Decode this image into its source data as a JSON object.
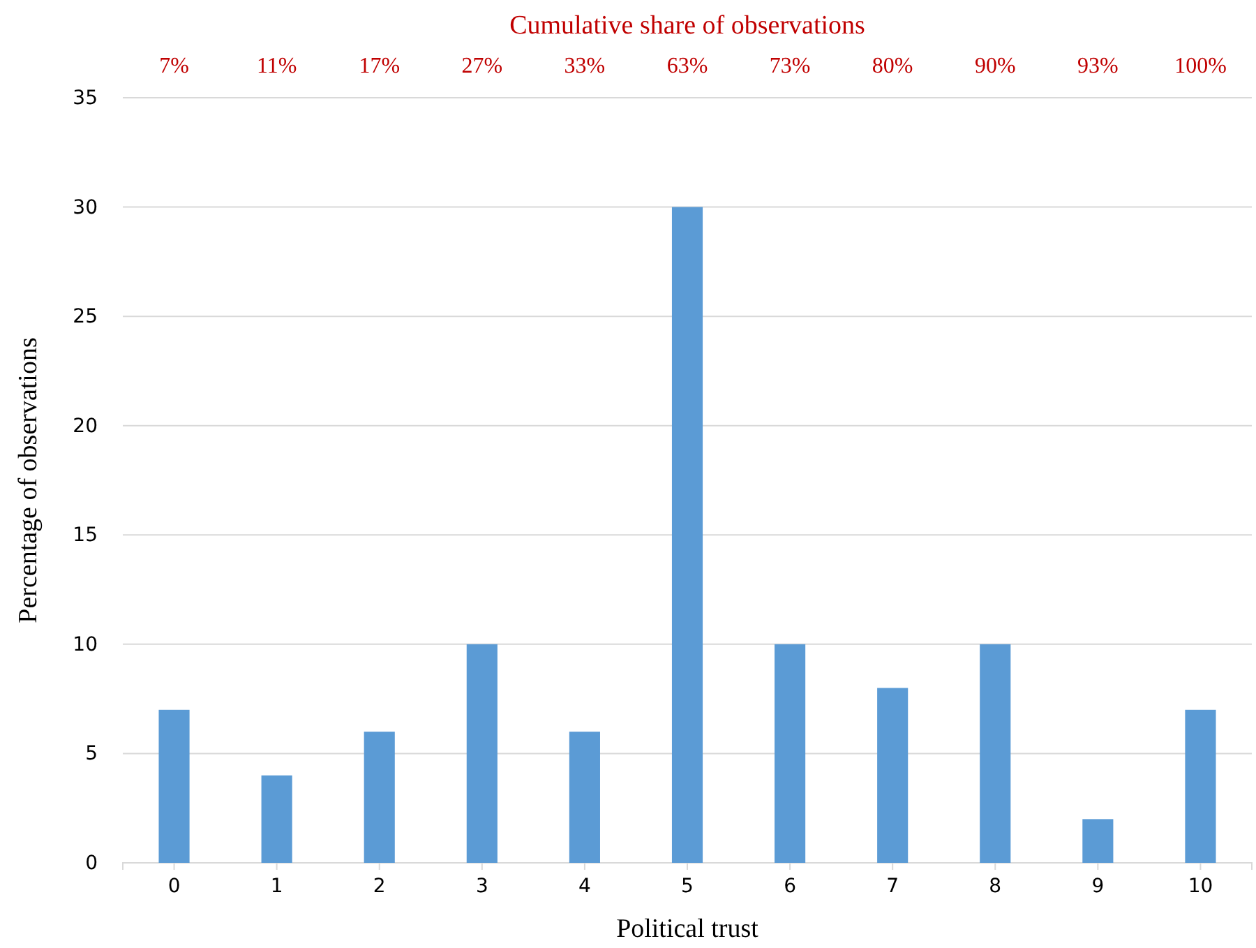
{
  "chart_data": {
    "type": "bar",
    "xlabel": "Political trust",
    "ylabel": "Percentage of observations",
    "categories": [
      "0",
      "1",
      "2",
      "3",
      "4",
      "5",
      "6",
      "7",
      "8",
      "9",
      "10"
    ],
    "values": [
      7,
      4,
      6,
      10,
      6,
      30,
      10,
      8,
      10,
      2,
      7
    ],
    "color": "#5b9bd5",
    "ylim": [
      0,
      35
    ],
    "yticks": [
      0,
      5,
      10,
      15,
      20,
      25,
      30,
      35
    ],
    "grid": "y",
    "annotations": [
      "Cumulative share of observations",
      "7%",
      "11%",
      "17%",
      "27%",
      "33%",
      "63%",
      "73%",
      "80%",
      "90%",
      "93%",
      "100%"
    ]
  }
}
